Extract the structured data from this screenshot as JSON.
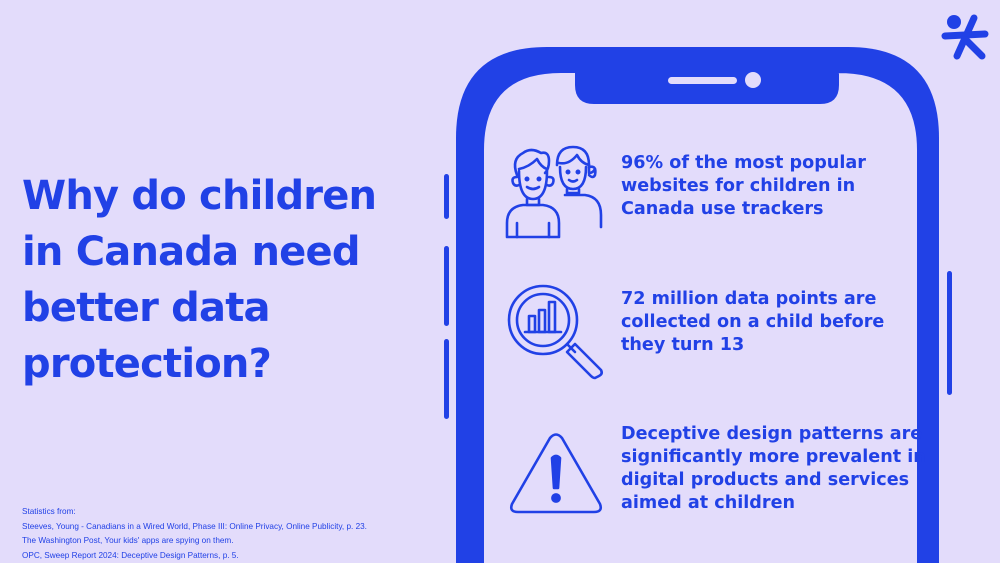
{
  "headline": {
    "line1": "Why do children",
    "line2": "in Canada need",
    "line3": "better data",
    "line4": "protection?"
  },
  "stats": [
    {
      "icon": "children-icon",
      "lines": [
        "96% of the most popular",
        "websites for children in",
        "Canada use trackers"
      ]
    },
    {
      "icon": "magnifier-chart-icon",
      "lines": [
        "72 million data points are",
        "collected on a child before",
        "they turn 13"
      ]
    },
    {
      "icon": "warning-icon",
      "lines": [
        "Deceptive design patterns are",
        "significantly more prevalent in",
        "digital products and services",
        "aimed at children"
      ]
    }
  ],
  "sources": {
    "heading": "Statistics from:",
    "items": [
      "Steeves, Young - Canadians in a Wired World, Phase III: Online Privacy, Online Publicity, p. 23.",
      "The Washington Post, Your kids' apps are spying on them.",
      "OPC, Sweep Report 2024: Deceptive Design Patterns, p. 5."
    ]
  },
  "logo": {
    "icon": "person-plus-logo-icon"
  },
  "colors": {
    "background": "#e3dcfb",
    "accent": "#2141e6"
  }
}
